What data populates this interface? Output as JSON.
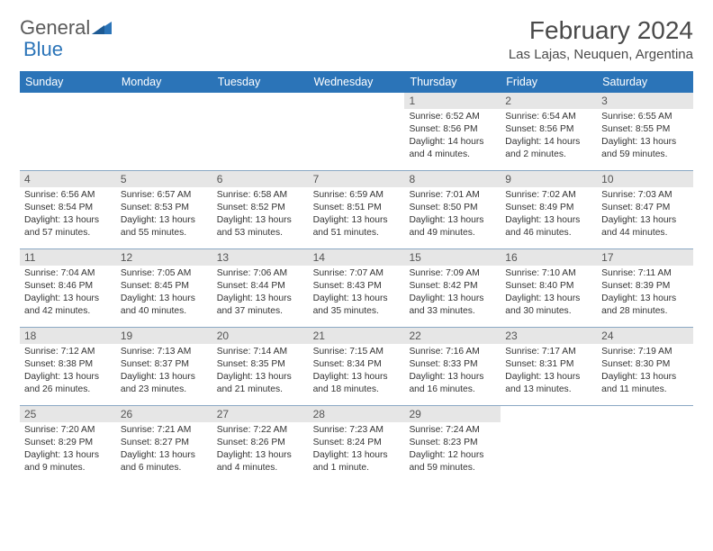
{
  "brand": {
    "part1": "General",
    "part2": "Blue"
  },
  "title": "February 2024",
  "location": "Las Lajas, Neuquen, Argentina",
  "colors": {
    "header_bg": "#2b74b8",
    "daynum_bg": "#e6e6e6",
    "divider": "#8ba8c4",
    "text": "#333333",
    "title_text": "#4a4a4a"
  },
  "days_of_week": [
    "Sunday",
    "Monday",
    "Tuesday",
    "Wednesday",
    "Thursday",
    "Friday",
    "Saturday"
  ],
  "weeks": [
    [
      {
        "empty": true
      },
      {
        "empty": true
      },
      {
        "empty": true
      },
      {
        "empty": true
      },
      {
        "n": "1",
        "sr": "6:52 AM",
        "ss": "8:56 PM",
        "dl": "14 hours and 4 minutes."
      },
      {
        "n": "2",
        "sr": "6:54 AM",
        "ss": "8:56 PM",
        "dl": "14 hours and 2 minutes."
      },
      {
        "n": "3",
        "sr": "6:55 AM",
        "ss": "8:55 PM",
        "dl": "13 hours and 59 minutes."
      }
    ],
    [
      {
        "n": "4",
        "sr": "6:56 AM",
        "ss": "8:54 PM",
        "dl": "13 hours and 57 minutes."
      },
      {
        "n": "5",
        "sr": "6:57 AM",
        "ss": "8:53 PM",
        "dl": "13 hours and 55 minutes."
      },
      {
        "n": "6",
        "sr": "6:58 AM",
        "ss": "8:52 PM",
        "dl": "13 hours and 53 minutes."
      },
      {
        "n": "7",
        "sr": "6:59 AM",
        "ss": "8:51 PM",
        "dl": "13 hours and 51 minutes."
      },
      {
        "n": "8",
        "sr": "7:01 AM",
        "ss": "8:50 PM",
        "dl": "13 hours and 49 minutes."
      },
      {
        "n": "9",
        "sr": "7:02 AM",
        "ss": "8:49 PM",
        "dl": "13 hours and 46 minutes."
      },
      {
        "n": "10",
        "sr": "7:03 AM",
        "ss": "8:47 PM",
        "dl": "13 hours and 44 minutes."
      }
    ],
    [
      {
        "n": "11",
        "sr": "7:04 AM",
        "ss": "8:46 PM",
        "dl": "13 hours and 42 minutes."
      },
      {
        "n": "12",
        "sr": "7:05 AM",
        "ss": "8:45 PM",
        "dl": "13 hours and 40 minutes."
      },
      {
        "n": "13",
        "sr": "7:06 AM",
        "ss": "8:44 PM",
        "dl": "13 hours and 37 minutes."
      },
      {
        "n": "14",
        "sr": "7:07 AM",
        "ss": "8:43 PM",
        "dl": "13 hours and 35 minutes."
      },
      {
        "n": "15",
        "sr": "7:09 AM",
        "ss": "8:42 PM",
        "dl": "13 hours and 33 minutes."
      },
      {
        "n": "16",
        "sr": "7:10 AM",
        "ss": "8:40 PM",
        "dl": "13 hours and 30 minutes."
      },
      {
        "n": "17",
        "sr": "7:11 AM",
        "ss": "8:39 PM",
        "dl": "13 hours and 28 minutes."
      }
    ],
    [
      {
        "n": "18",
        "sr": "7:12 AM",
        "ss": "8:38 PM",
        "dl": "13 hours and 26 minutes."
      },
      {
        "n": "19",
        "sr": "7:13 AM",
        "ss": "8:37 PM",
        "dl": "13 hours and 23 minutes."
      },
      {
        "n": "20",
        "sr": "7:14 AM",
        "ss": "8:35 PM",
        "dl": "13 hours and 21 minutes."
      },
      {
        "n": "21",
        "sr": "7:15 AM",
        "ss": "8:34 PM",
        "dl": "13 hours and 18 minutes."
      },
      {
        "n": "22",
        "sr": "7:16 AM",
        "ss": "8:33 PM",
        "dl": "13 hours and 16 minutes."
      },
      {
        "n": "23",
        "sr": "7:17 AM",
        "ss": "8:31 PM",
        "dl": "13 hours and 13 minutes."
      },
      {
        "n": "24",
        "sr": "7:19 AM",
        "ss": "8:30 PM",
        "dl": "13 hours and 11 minutes."
      }
    ],
    [
      {
        "n": "25",
        "sr": "7:20 AM",
        "ss": "8:29 PM",
        "dl": "13 hours and 9 minutes."
      },
      {
        "n": "26",
        "sr": "7:21 AM",
        "ss": "8:27 PM",
        "dl": "13 hours and 6 minutes."
      },
      {
        "n": "27",
        "sr": "7:22 AM",
        "ss": "8:26 PM",
        "dl": "13 hours and 4 minutes."
      },
      {
        "n": "28",
        "sr": "7:23 AM",
        "ss": "8:24 PM",
        "dl": "13 hours and 1 minute."
      },
      {
        "n": "29",
        "sr": "7:24 AM",
        "ss": "8:23 PM",
        "dl": "12 hours and 59 minutes."
      },
      {
        "empty": true
      },
      {
        "empty": true
      }
    ]
  ],
  "labels": {
    "sunrise": "Sunrise: ",
    "sunset": "Sunset: ",
    "daylight": "Daylight: "
  }
}
